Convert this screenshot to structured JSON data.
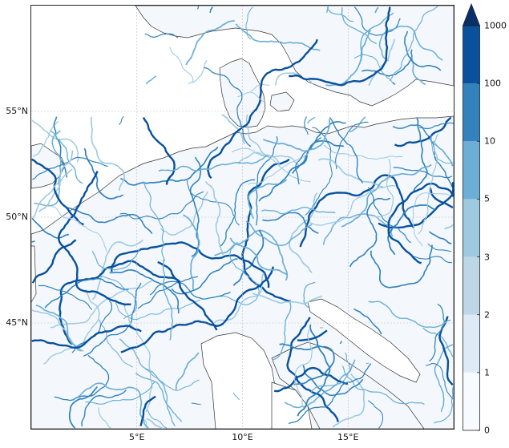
{
  "map": {
    "lon_range": [
      0,
      20
    ],
    "lat_range": [
      40,
      60
    ],
    "gridlines": true,
    "lat_ticks": [
      {
        "value": 45,
        "label": "45°N"
      },
      {
        "value": 50,
        "label": "50°N"
      },
      {
        "value": 55,
        "label": "55°N"
      }
    ],
    "lon_ticks": [
      {
        "value": 5,
        "label": "5°E"
      },
      {
        "value": 10,
        "label": "10°E"
      },
      {
        "value": 15,
        "label": "15°E"
      }
    ],
    "colors": {
      "land_base": "#f4f8fd",
      "sea": "#ffffff",
      "coast": "#333333",
      "grid": "#bbbbbb"
    }
  },
  "colorbar": {
    "extend": "max",
    "levels": [
      "0",
      "1",
      "2",
      "3",
      "5",
      "10",
      "100",
      "1000"
    ],
    "colors": [
      "#f7fbff",
      "#deebf7",
      "#bdd7e7",
      "#9ecae1",
      "#6baed6",
      "#3182bd",
      "#08519c",
      "#08306b"
    ]
  }
}
